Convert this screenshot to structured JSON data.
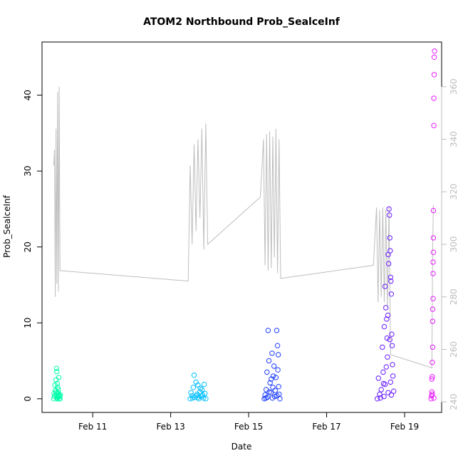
{
  "chart_data": {
    "type": "scatter",
    "title": "ATOM2 Northbound Prob_SealceInf",
    "xlabel": "Date",
    "ylabel": "Prob_SealceInf",
    "x_ticks": [
      "Feb 11",
      "Feb 13",
      "Feb 15",
      "Feb 17",
      "Feb 19"
    ],
    "x_tick_days": [
      11,
      13,
      15,
      17,
      19
    ],
    "xlim_days": [
      9.7,
      19.95
    ],
    "ylim": [
      -1.8,
      47
    ],
    "y_ticks": [
      0,
      10,
      20,
      30,
      40
    ],
    "y2_ticks": [
      240,
      260,
      280,
      300,
      320,
      340,
      360
    ],
    "y2lim": [
      236,
      377
    ],
    "colors": {
      "group1": "#00FFAA",
      "group2": "#00BFFF",
      "group3": "#1E3FFF",
      "group4": "#6A1BFF",
      "group5": "#E81BFF",
      "line": "#BEBEBE"
    },
    "series": [
      {
        "color": "group1",
        "points": [
          [
            10.0,
            0
          ],
          [
            10.02,
            0.3
          ],
          [
            10.04,
            1.1
          ],
          [
            10.05,
            0.5
          ],
          [
            10.06,
            2.5
          ],
          [
            10.07,
            4.0
          ],
          [
            10.08,
            3.6
          ],
          [
            10.09,
            2.0
          ],
          [
            10.1,
            1.5
          ],
          [
            10.11,
            0.8
          ],
          [
            10.12,
            0.2
          ],
          [
            10.13,
            2.8
          ],
          [
            10.14,
            0
          ],
          [
            10.15,
            0.4
          ],
          [
            10.03,
            1.8
          ],
          [
            10.06,
            0.9
          ],
          [
            10.08,
            0.1
          ],
          [
            10.1,
            0.6
          ],
          [
            10.12,
            1.2
          ],
          [
            10.14,
            0.3
          ],
          [
            10.16,
            0
          ],
          [
            10.17,
            0.5
          ],
          [
            10.01,
            0.7
          ],
          [
            10.09,
            0
          ]
        ]
      },
      {
        "color": "group2",
        "points": [
          [
            13.5,
            0
          ],
          [
            13.52,
            0.8
          ],
          [
            13.55,
            0.4
          ],
          [
            13.58,
            1.5
          ],
          [
            13.6,
            3.1
          ],
          [
            13.62,
            0.2
          ],
          [
            13.65,
            2.2
          ],
          [
            13.68,
            0.6
          ],
          [
            13.7,
            1.8
          ],
          [
            13.72,
            0
          ],
          [
            13.75,
            0.9
          ],
          [
            13.78,
            0.3
          ],
          [
            13.8,
            1.2
          ],
          [
            13.82,
            0.5
          ],
          [
            13.84,
            0.1
          ],
          [
            13.86,
            1.9
          ],
          [
            13.88,
            0.7
          ],
          [
            13.9,
            0
          ],
          [
            13.56,
            0.1
          ],
          [
            13.66,
            0.4
          ],
          [
            13.76,
            1.4
          ],
          [
            13.7,
            0.2
          ]
        ]
      },
      {
        "color": "group3",
        "points": [
          [
            15.4,
            0
          ],
          [
            15.42,
            0.5
          ],
          [
            15.45,
            1.2
          ],
          [
            15.47,
            3.5
          ],
          [
            15.5,
            9.0
          ],
          [
            15.52,
            5.0
          ],
          [
            15.55,
            2.1
          ],
          [
            15.57,
            0.8
          ],
          [
            15.6,
            6.0
          ],
          [
            15.62,
            1.5
          ],
          [
            15.65,
            4.3
          ],
          [
            15.67,
            0.3
          ],
          [
            15.7,
            2.8
          ],
          [
            15.72,
            9.0
          ],
          [
            15.74,
            7.0
          ],
          [
            15.76,
            5.8
          ],
          [
            15.78,
            0.6
          ],
          [
            15.8,
            0
          ],
          [
            15.48,
            0.2
          ],
          [
            15.53,
            0.9
          ],
          [
            15.58,
            2.6
          ],
          [
            15.63,
            3.0
          ],
          [
            15.68,
            1.1
          ],
          [
            15.73,
            0.4
          ],
          [
            15.75,
            3.8
          ],
          [
            15.44,
            0.1
          ],
          [
            15.61,
            0.1
          ],
          [
            15.77,
            1.6
          ]
        ]
      },
      {
        "color": "group4",
        "points": [
          [
            18.3,
            0
          ],
          [
            18.33,
            2.7
          ],
          [
            18.36,
            0.6
          ],
          [
            18.4,
            1.2
          ],
          [
            18.43,
            6.8
          ],
          [
            18.46,
            2.0
          ],
          [
            18.48,
            9.5
          ],
          [
            18.5,
            14.8
          ],
          [
            18.52,
            12.0
          ],
          [
            18.54,
            10.5
          ],
          [
            18.56,
            5.5
          ],
          [
            18.58,
            19.0
          ],
          [
            18.6,
            25.0
          ],
          [
            18.61,
            24.2
          ],
          [
            18.62,
            21.2
          ],
          [
            18.63,
            19.5
          ],
          [
            18.64,
            16.0
          ],
          [
            18.65,
            15.5
          ],
          [
            18.66,
            13.8
          ],
          [
            18.67,
            8.5
          ],
          [
            18.68,
            7.0
          ],
          [
            18.69,
            4.5
          ],
          [
            18.7,
            3.0
          ],
          [
            18.72,
            1.0
          ],
          [
            18.45,
            3.5
          ],
          [
            18.47,
            0.3
          ],
          [
            18.53,
            4.2
          ],
          [
            18.55,
            8.0
          ],
          [
            18.57,
            11.0
          ],
          [
            18.59,
            17.8
          ],
          [
            18.62,
            7.8
          ],
          [
            18.64,
            2.2
          ],
          [
            18.66,
            0.5
          ],
          [
            18.58,
            0.8
          ],
          [
            18.38,
            0.1
          ],
          [
            18.5,
            1.9
          ]
        ]
      },
      {
        "color": "group5",
        "points": [
          [
            19.68,
            0
          ],
          [
            19.69,
            0.4
          ],
          [
            19.7,
            0.9
          ],
          [
            19.7,
            2.6
          ],
          [
            19.71,
            2.9
          ],
          [
            19.71,
            4.8
          ],
          [
            19.72,
            6.8
          ],
          [
            19.72,
            10.2
          ],
          [
            19.72,
            11.8
          ],
          [
            19.73,
            13.2
          ],
          [
            19.73,
            16.5
          ],
          [
            19.73,
            18.0
          ],
          [
            19.74,
            19.3
          ],
          [
            19.74,
            21.2
          ],
          [
            19.74,
            24.8
          ],
          [
            19.75,
            36.0
          ],
          [
            19.75,
            39.6
          ],
          [
            19.76,
            42.7
          ],
          [
            19.76,
            45.0
          ],
          [
            19.77,
            45.8
          ],
          [
            19.75,
            0.1
          ],
          [
            19.71,
            0.6
          ]
        ]
      }
    ],
    "y2_line": {
      "name": "",
      "color": "line",
      "points": [
        [
          10.0,
          330
        ],
        [
          10.02,
          336
        ],
        [
          10.04,
          280
        ],
        [
          10.06,
          344
        ],
        [
          10.08,
          285
        ],
        [
          10.1,
          358
        ],
        [
          10.12,
          282
        ],
        [
          10.14,
          360
        ],
        [
          10.16,
          290
        ],
        [
          13.45,
          286
        ],
        [
          13.5,
          330
        ],
        [
          13.55,
          300
        ],
        [
          13.6,
          338
        ],
        [
          13.65,
          305
        ],
        [
          13.7,
          340
        ],
        [
          13.75,
          310
        ],
        [
          13.8,
          344
        ],
        [
          13.85,
          298
        ],
        [
          13.9,
          346
        ],
        [
          13.95,
          300
        ],
        [
          15.3,
          318
        ],
        [
          15.38,
          340
        ],
        [
          15.42,
          292
        ],
        [
          15.46,
          342
        ],
        [
          15.5,
          290
        ],
        [
          15.54,
          343
        ],
        [
          15.58,
          291
        ],
        [
          15.62,
          341
        ],
        [
          15.66,
          295
        ],
        [
          15.7,
          344
        ],
        [
          15.74,
          289
        ],
        [
          15.78,
          340
        ],
        [
          15.82,
          287
        ],
        [
          18.2,
          292
        ],
        [
          18.28,
          314
        ],
        [
          18.32,
          278
        ],
        [
          18.36,
          313
        ],
        [
          18.4,
          280
        ],
        [
          18.44,
          314
        ],
        [
          18.48,
          278
        ],
        [
          18.52,
          313
        ],
        [
          18.56,
          276
        ],
        [
          18.6,
          314
        ],
        [
          18.64,
          258
        ],
        [
          19.7,
          253
        ],
        [
          19.72,
          300
        ],
        [
          19.74,
          315
        ]
      ]
    }
  }
}
